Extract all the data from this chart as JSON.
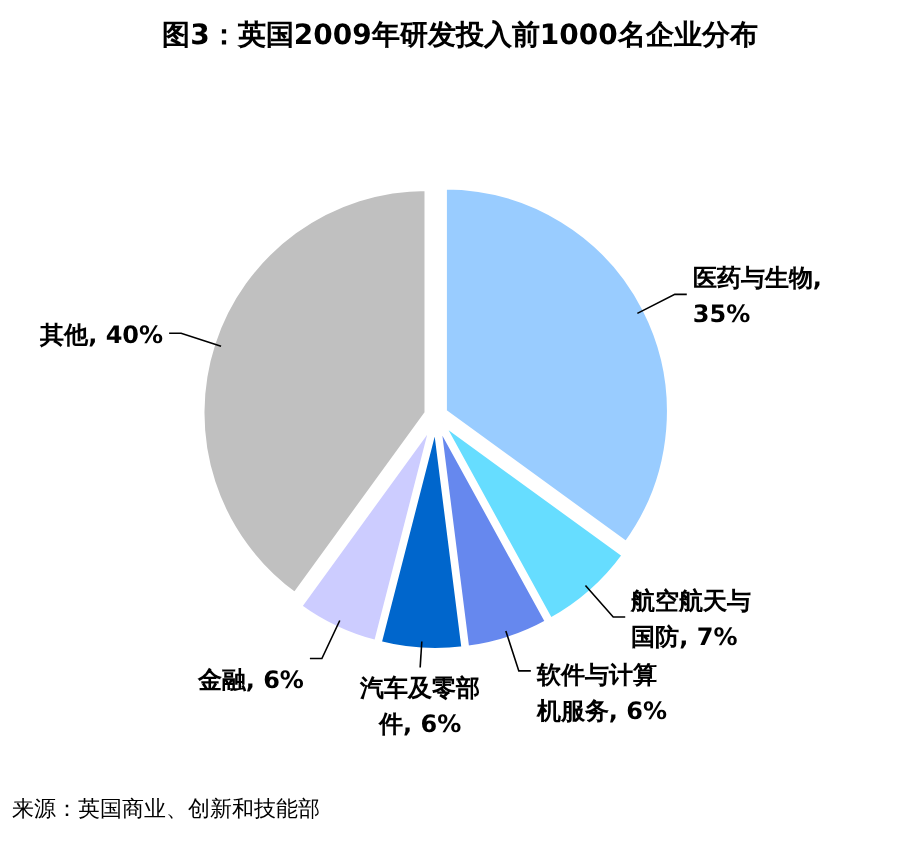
{
  "chart_data": {
    "type": "pie",
    "title": "图3：英国2009年研发投入前1000名企业分布",
    "categories": [
      "医药与生物, 35%",
      "航空航天与国防, 7%",
      "软件与计算机服务, 6%",
      "汽车及零部件, 6%",
      "金融, 6%",
      "其他, 40%"
    ],
    "values": [
      35,
      7,
      6,
      6,
      6,
      40
    ],
    "colors": [
      "#99ccff",
      "#66ddff",
      "#6688ee",
      "#0066cc",
      "#ccccff",
      "#c0c0c0"
    ],
    "annotations": [
      "来源：英国商业、创新和技能部"
    ]
  }
}
